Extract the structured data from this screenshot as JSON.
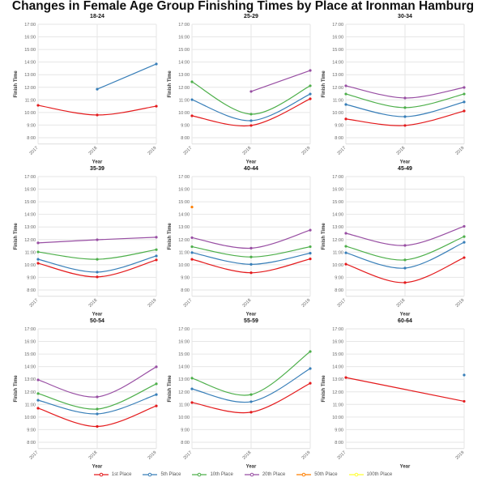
{
  "title": "Changes in Female Age Group Finishing Times by Place at Ironman Hamburg",
  "legend": [
    {
      "label": "1st Place",
      "color": "#e41a1c"
    },
    {
      "label": "5th Place",
      "color": "#377eb8"
    },
    {
      "label": "10th Place",
      "color": "#4daf4a"
    },
    {
      "label": "20th Place",
      "color": "#984ea3"
    },
    {
      "label": "50th Place",
      "color": "#ff7f00"
    },
    {
      "label": "100th Place",
      "color": "#ffff33"
    }
  ],
  "chart_data": [
    {
      "type": "line",
      "title": "18-24",
      "xlabel": "Year",
      "ylabel": "Finish Time",
      "x": [
        "2017",
        "2018",
        "2019"
      ],
      "ylim": [
        "7:30",
        "17:00"
      ],
      "yticks": [
        "8:00",
        "9:00",
        "10:00",
        "11:00",
        "12:00",
        "13:00",
        "14:00",
        "15:00",
        "16:00",
        "17:00"
      ],
      "grid": true,
      "series": [
        {
          "name": "1st Place",
          "values": [
            "10:34",
            "9:48",
            "10:30"
          ]
        },
        {
          "name": "5th Place",
          "values": [
            null,
            "11:51",
            "13:51"
          ]
        }
      ]
    },
    {
      "type": "line",
      "title": "25-29",
      "xlabel": "Year",
      "ylabel": "Finish Time",
      "x": [
        "2017",
        "2018",
        "2019"
      ],
      "ylim": [
        "7:30",
        "17:00"
      ],
      "yticks": [
        "8:00",
        "9:00",
        "10:00",
        "11:00",
        "12:00",
        "13:00",
        "14:00",
        "15:00",
        "16:00",
        "17:00"
      ],
      "grid": true,
      "series": [
        {
          "name": "1st Place",
          "values": [
            "9:44",
            "8:58",
            "11:05"
          ]
        },
        {
          "name": "5th Place",
          "values": [
            "11:01",
            "9:21",
            "11:28"
          ]
        },
        {
          "name": "10th Place",
          "values": [
            "12:26",
            "9:52",
            "12:07"
          ]
        },
        {
          "name": "20th Place",
          "values": [
            null,
            "11:40",
            "13:20"
          ]
        }
      ]
    },
    {
      "type": "line",
      "title": "30-34",
      "xlabel": "Year",
      "ylabel": "Finish Time",
      "x": [
        "2017",
        "2018",
        "2019"
      ],
      "ylim": [
        "7:30",
        "17:00"
      ],
      "yticks": [
        "8:00",
        "9:00",
        "10:00",
        "11:00",
        "12:00",
        "13:00",
        "14:00",
        "15:00",
        "16:00",
        "17:00"
      ],
      "grid": true,
      "series": [
        {
          "name": "1st Place",
          "values": [
            "9:29",
            "8:58",
            "10:07"
          ]
        },
        {
          "name": "5th Place",
          "values": [
            "10:38",
            "9:40",
            "10:50"
          ]
        },
        {
          "name": "10th Place",
          "values": [
            "11:28",
            "10:23",
            "11:28"
          ]
        },
        {
          "name": "20th Place",
          "values": [
            "12:07",
            "11:09",
            "11:59"
          ]
        }
      ]
    },
    {
      "type": "line",
      "title": "35-39",
      "xlabel": "Year",
      "ylabel": "Finish Time",
      "x": [
        "2017",
        "2018",
        "2019"
      ],
      "ylim": [
        "7:30",
        "17:00"
      ],
      "yticks": [
        "8:00",
        "9:00",
        "10:00",
        "11:00",
        "12:00",
        "13:00",
        "14:00",
        "15:00",
        "16:00",
        "17:00"
      ],
      "grid": true,
      "series": [
        {
          "name": "1st Place",
          "values": [
            "10:07",
            "9:02",
            "10:23"
          ]
        },
        {
          "name": "5th Place",
          "values": [
            "10:26",
            "9:25",
            "10:42"
          ]
        },
        {
          "name": "10th Place",
          "values": [
            "11:01",
            "10:26",
            "11:12"
          ]
        },
        {
          "name": "20th Place",
          "values": [
            "11:44",
            "11:59",
            "12:11"
          ]
        }
      ]
    },
    {
      "type": "line",
      "title": "40-44",
      "xlabel": "Year",
      "ylabel": "Finish Time",
      "x": [
        "2017",
        "2018",
        "2019"
      ],
      "ylim": [
        "7:30",
        "17:00"
      ],
      "yticks": [
        "8:00",
        "9:00",
        "10:00",
        "11:00",
        "12:00",
        "13:00",
        "14:00",
        "15:00",
        "16:00",
        "17:00"
      ],
      "grid": true,
      "series": [
        {
          "name": "1st Place",
          "values": [
            "10:26",
            "9:22",
            "10:28"
          ]
        },
        {
          "name": "5th Place",
          "values": [
            "10:58",
            "10:02",
            "10:55"
          ]
        },
        {
          "name": "10th Place",
          "values": [
            "11:26",
            "10:37",
            "11:26"
          ]
        },
        {
          "name": "20th Place",
          "values": [
            "12:09",
            "11:19",
            "12:45"
          ]
        },
        {
          "name": "50th Place",
          "values": [
            "14:35",
            null,
            null
          ]
        }
      ]
    },
    {
      "type": "line",
      "title": "45-49",
      "xlabel": "Year",
      "ylabel": "Finish Time",
      "x": [
        "2017",
        "2018",
        "2019"
      ],
      "ylim": [
        "7:30",
        "17:00"
      ],
      "yticks": [
        "8:00",
        "9:00",
        "10:00",
        "11:00",
        "12:00",
        "13:00",
        "14:00",
        "15:00",
        "16:00",
        "17:00"
      ],
      "grid": true,
      "series": [
        {
          "name": "1st Place",
          "values": [
            "10:03",
            "8:35",
            "10:34"
          ]
        },
        {
          "name": "5th Place",
          "values": [
            "10:57",
            "9:44",
            "11:47"
          ]
        },
        {
          "name": "10th Place",
          "values": [
            "11:28",
            "10:23",
            "12:14"
          ]
        },
        {
          "name": "20th Place",
          "values": [
            "12:30",
            "11:32",
            "13:03"
          ]
        }
      ]
    },
    {
      "type": "line",
      "title": "50-54",
      "xlabel": "Year",
      "ylabel": "Finish Time",
      "x": [
        "2017",
        "2018",
        "2019"
      ],
      "ylim": [
        "7:30",
        "17:00"
      ],
      "yticks": [
        "8:00",
        "9:00",
        "10:00",
        "11:00",
        "12:00",
        "13:00",
        "14:00",
        "15:00",
        "16:00",
        "17:00"
      ],
      "grid": true,
      "series": [
        {
          "name": "1st Place",
          "values": [
            "10:42",
            "9:15",
            "10:53"
          ]
        },
        {
          "name": "5th Place",
          "values": [
            "11:20",
            "10:15",
            "11:47"
          ]
        },
        {
          "name": "10th Place",
          "values": [
            "11:52",
            "10:38",
            "12:38"
          ]
        },
        {
          "name": "20th Place",
          "values": [
            "12:57",
            "11:36",
            "13:59"
          ]
        }
      ]
    },
    {
      "type": "line",
      "title": "55-59",
      "xlabel": "Year",
      "ylabel": "Finish Time",
      "x": [
        "2017",
        "2018",
        "2019"
      ],
      "ylim": [
        "7:30",
        "17:00"
      ],
      "yticks": [
        "8:00",
        "9:00",
        "10:00",
        "11:00",
        "12:00",
        "13:00",
        "14:00",
        "15:00",
        "16:00",
        "17:00"
      ],
      "grid": true,
      "series": [
        {
          "name": "1st Place",
          "values": [
            "11:09",
            "10:23",
            "12:41"
          ]
        },
        {
          "name": "5th Place",
          "values": [
            "12:14",
            "11:13",
            "13:51"
          ]
        },
        {
          "name": "10th Place",
          "values": [
            "13:05",
            "11:47",
            "15:12"
          ]
        }
      ]
    },
    {
      "type": "line",
      "title": "60-64",
      "xlabel": "Year",
      "ylabel": "Finish Time",
      "x": [
        "2017",
        "2019"
      ],
      "ylim": [
        "7:30",
        "17:00"
      ],
      "yticks": [
        "8:00",
        "9:00",
        "10:00",
        "11:00",
        "12:00",
        "13:00",
        "14:00",
        "15:00",
        "16:00",
        "17:00"
      ],
      "grid": true,
      "series": [
        {
          "name": "1st Place",
          "values": [
            "13:08",
            "11:15"
          ]
        },
        {
          "name": "5th Place",
          "values": [
            null,
            "13:20"
          ]
        }
      ]
    }
  ]
}
